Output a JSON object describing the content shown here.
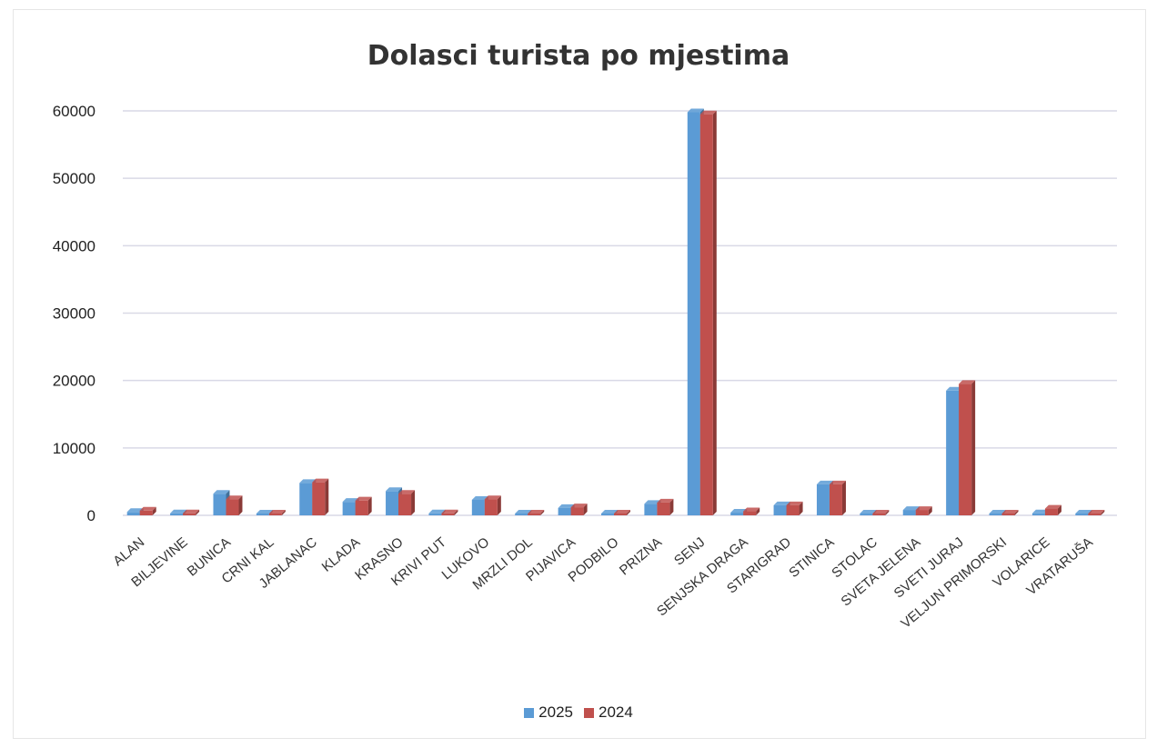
{
  "chart_data": {
    "type": "bar",
    "title": "Dolasci turista po mjestima",
    "categories": [
      "ALAN",
      "BILJEVINE",
      "BUNICA",
      "CRNI KAL",
      "JABLANAC",
      "KLADA",
      "KRASNO",
      "KRIVI PUT",
      "LUKOVO",
      "MRZLI DOL",
      "PIJAVICA",
      "PODBILO",
      "PRIZNA",
      "SENJ",
      "SENJSKA DRAGA",
      "STARIGRAD",
      "STINICA",
      "STOLAC",
      "SVETA JELENA",
      "SVETI JURAJ",
      "VELJUN PRIMORSKI",
      "VOLARICE",
      "VRATARUŠA"
    ],
    "series": [
      {
        "name": "2025",
        "color": "#5b9bd5",
        "values": [
          500,
          300,
          3200,
          200,
          4800,
          2000,
          3600,
          300,
          2300,
          100,
          1100,
          200,
          1700,
          59800,
          400,
          1500,
          4600,
          100,
          800,
          18500,
          100,
          300,
          50
        ]
      },
      {
        "name": "2024",
        "color": "#c0504d",
        "values": [
          700,
          300,
          2400,
          200,
          4900,
          2200,
          3200,
          300,
          2400,
          100,
          1200,
          200,
          1900,
          59500,
          600,
          1500,
          4600,
          100,
          800,
          19500,
          100,
          1000,
          50
        ]
      }
    ],
    "yticks": [
      0,
      10000,
      20000,
      30000,
      40000,
      50000,
      60000
    ],
    "ylim": [
      0,
      60000
    ],
    "grid": true,
    "legend_position": "bottom"
  }
}
